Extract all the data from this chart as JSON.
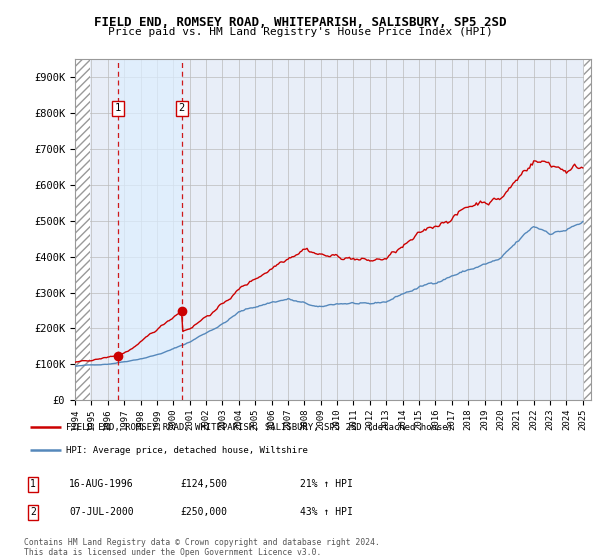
{
  "title": "FIELD END, ROMSEY ROAD, WHITEPARISH, SALISBURY, SP5 2SD",
  "subtitle": "Price paid vs. HM Land Registry's House Price Index (HPI)",
  "ylabel_ticks": [
    "£0",
    "£100K",
    "£200K",
    "£300K",
    "£400K",
    "£500K",
    "£600K",
    "£700K",
    "£800K",
    "£900K"
  ],
  "ytick_vals": [
    0,
    100000,
    200000,
    300000,
    400000,
    500000,
    600000,
    700000,
    800000,
    900000
  ],
  "ylim": [
    0,
    950000
  ],
  "xlim_start": 1994.0,
  "xlim_end": 2025.5,
  "sale1_date": 1996.622,
  "sale1_price": 124500,
  "sale1_label": "1",
  "sale2_date": 2000.52,
  "sale2_price": 250000,
  "sale2_label": "2",
  "legend_line1": "FIELD END, ROMSEY ROAD, WHITEPARISH, SALISBURY, SP5 2SD (detached house)",
  "legend_line2": "HPI: Average price, detached house, Wiltshire",
  "table_rows": [
    {
      "box": "1",
      "date": "16-AUG-1996",
      "price": "£124,500",
      "hpi": "21% ↑ HPI"
    },
    {
      "box": "2",
      "date": "07-JUL-2000",
      "price": "£250,000",
      "hpi": "43% ↑ HPI"
    }
  ],
  "footer": "Contains HM Land Registry data © Crown copyright and database right 2024.\nThis data is licensed under the Open Government Licence v3.0.",
  "line_color_red": "#cc0000",
  "line_color_blue": "#5588bb",
  "shade_color": "#ddeeff",
  "background_color": "#e8eef8",
  "hatch_color": "#bbbbbb",
  "grid_color": "#bbbbbb"
}
